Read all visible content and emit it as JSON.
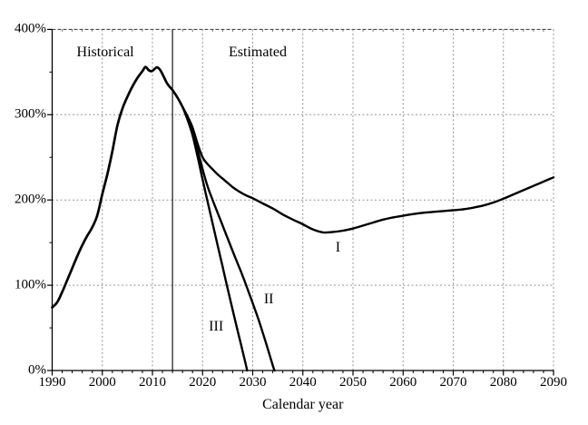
{
  "chart_data": {
    "type": "line",
    "title": "",
    "xlabel": "Calendar year",
    "ylabel": "",
    "legend": "none",
    "grid": "dotted",
    "x_axis": {
      "min": 1990,
      "max": 2090,
      "major_tick_step": 10,
      "minor_tick_step": 2,
      "tick_years": [
        1990,
        2000,
        2010,
        2020,
        2030,
        2040,
        2050,
        2060,
        2070,
        2080,
        2090
      ],
      "tick_labels": [
        "1990",
        "2000",
        "2010",
        "2020",
        "2030",
        "2040",
        "2050",
        "2060",
        "2070",
        "2080",
        "2090"
      ]
    },
    "y_axis": {
      "min": 0,
      "max": 400,
      "major_tick_step_pct": 100,
      "minor_tick_step_pct": 50,
      "tick_pcts": [
        0,
        100,
        200,
        300,
        400
      ],
      "tick_labels": [
        "0%",
        "100%",
        "200%",
        "300%",
        "400%"
      ]
    },
    "divider": {
      "year": 2014,
      "style": "solid vertical line separating historical from estimated"
    },
    "region_labels": [
      {
        "text": "Historical",
        "year": 2000.6,
        "pct": 373
      },
      {
        "text": "Estimated",
        "year": 2031.0,
        "pct": 373
      }
    ],
    "series_labels": [
      {
        "text": "I",
        "year": 2047.0,
        "pct": 144
      },
      {
        "text": "II",
        "year": 2033.2,
        "pct": 83
      },
      {
        "text": "III",
        "year": 2022.7,
        "pct": 51
      }
    ],
    "series": [
      {
        "name": "Historical",
        "points": [
          [
            1990,
            74
          ],
          [
            1991,
            80
          ],
          [
            1992,
            92
          ],
          [
            1993,
            106
          ],
          [
            1994,
            120
          ],
          [
            1995,
            134
          ],
          [
            1996,
            147
          ],
          [
            1997,
            158
          ],
          [
            1998,
            168
          ],
          [
            1999,
            182
          ],
          [
            2000,
            207
          ],
          [
            2001,
            230
          ],
          [
            2002,
            257
          ],
          [
            2003,
            287
          ],
          [
            2004,
            307
          ],
          [
            2005,
            321
          ],
          [
            2006,
            333
          ],
          [
            2007,
            343
          ],
          [
            2008,
            351
          ],
          [
            2008.6,
            356
          ],
          [
            2009.2,
            352.5
          ],
          [
            2009.8,
            351
          ],
          [
            2010.4,
            353.5
          ],
          [
            2010.9,
            355.5
          ],
          [
            2011.6,
            352
          ],
          [
            2012.3,
            344
          ],
          [
            2013,
            336
          ],
          [
            2014,
            329
          ]
        ]
      },
      {
        "name": "I",
        "points": [
          [
            2014,
            329
          ],
          [
            2015,
            320
          ],
          [
            2016,
            309
          ],
          [
            2017,
            298
          ],
          [
            2018,
            285
          ],
          [
            2019,
            266
          ],
          [
            2020,
            250
          ],
          [
            2021,
            242
          ],
          [
            2022,
            236
          ],
          [
            2023,
            230
          ],
          [
            2024,
            225
          ],
          [
            2025,
            220
          ],
          [
            2026,
            215
          ],
          [
            2027,
            211
          ],
          [
            2028,
            207.5
          ],
          [
            2029,
            204.5
          ],
          [
            2030,
            202
          ],
          [
            2032,
            196
          ],
          [
            2034,
            190
          ],
          [
            2036,
            183
          ],
          [
            2038,
            177
          ],
          [
            2040,
            171.5
          ],
          [
            2042,
            165.5
          ],
          [
            2044,
            162
          ],
          [
            2046,
            162.5
          ],
          [
            2048,
            164
          ],
          [
            2050,
            166.5
          ],
          [
            2052,
            170
          ],
          [
            2054,
            173.5
          ],
          [
            2056,
            177
          ],
          [
            2058,
            179.5
          ],
          [
            2060,
            181.5
          ],
          [
            2062,
            183.5
          ],
          [
            2064,
            185
          ],
          [
            2066,
            186
          ],
          [
            2068,
            187
          ],
          [
            2070,
            188
          ],
          [
            2072,
            189
          ],
          [
            2074,
            191
          ],
          [
            2076,
            193.5
          ],
          [
            2078,
            197
          ],
          [
            2080,
            201.5
          ],
          [
            2082,
            206.5
          ],
          [
            2084,
            211.5
          ],
          [
            2086,
            216.5
          ],
          [
            2088,
            221.5
          ],
          [
            2090,
            226.5
          ]
        ]
      },
      {
        "name": "II",
        "points": [
          [
            2014,
            329
          ],
          [
            2015,
            320
          ],
          [
            2016,
            309
          ],
          [
            2017,
            296
          ],
          [
            2018,
            281
          ],
          [
            2019,
            259
          ],
          [
            2020,
            236
          ],
          [
            2021,
            216
          ],
          [
            2022,
            200
          ],
          [
            2023,
            185
          ],
          [
            2024,
            170
          ],
          [
            2025,
            155
          ],
          [
            2026,
            140
          ],
          [
            2027,
            125.5
          ],
          [
            2028,
            111
          ],
          [
            2029,
            95
          ],
          [
            2030,
            79
          ],
          [
            2031,
            62.5
          ],
          [
            2032,
            44.5
          ],
          [
            2033,
            25.5
          ],
          [
            2034,
            6
          ],
          [
            2034.35,
            0
          ]
        ]
      },
      {
        "name": "III",
        "points": [
          [
            2014,
            329
          ],
          [
            2015,
            320
          ],
          [
            2016,
            309
          ],
          [
            2017,
            294
          ],
          [
            2018,
            276
          ],
          [
            2019,
            251
          ],
          [
            2020,
            224
          ],
          [
            2021,
            198
          ],
          [
            2022,
            172.5
          ],
          [
            2023,
            147
          ],
          [
            2024,
            121.5
          ],
          [
            2025,
            96
          ],
          [
            2026,
            71
          ],
          [
            2027,
            46.5
          ],
          [
            2028,
            22.5
          ],
          [
            2028.9,
            0
          ]
        ]
      }
    ],
    "colors": {
      "curve": "#000000",
      "axis": "#000000",
      "gridline": "#949494",
      "top_gridline": "#333333",
      "background": "#ffffff"
    }
  }
}
